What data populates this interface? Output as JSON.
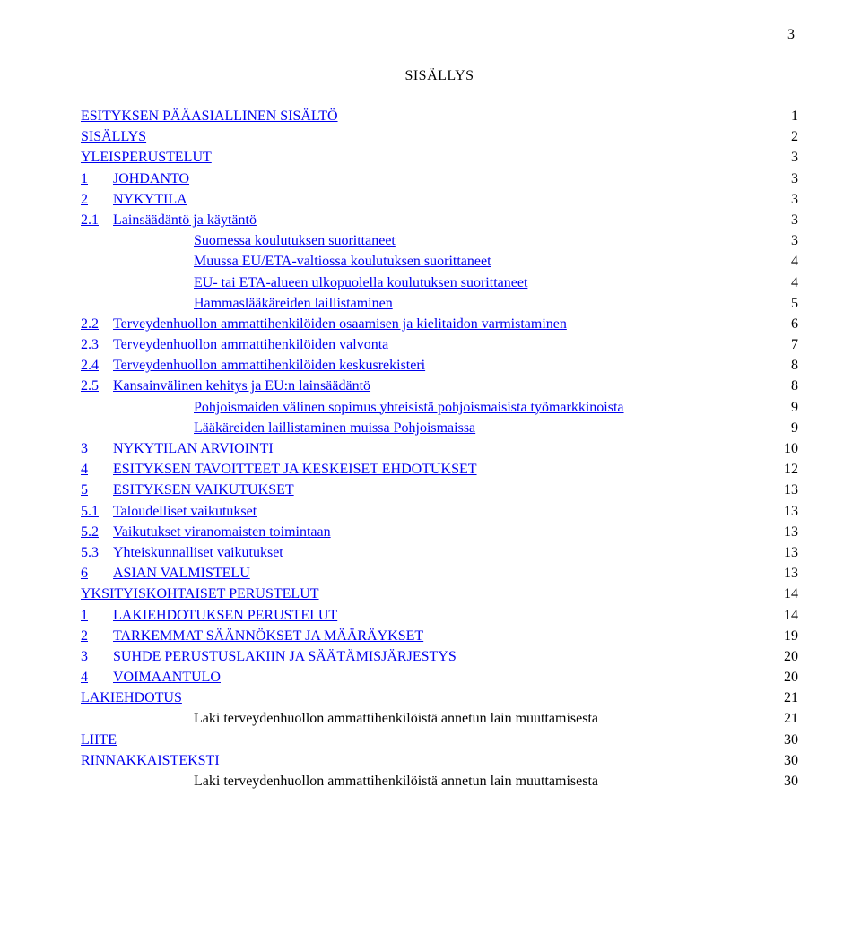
{
  "page_number_top": "3",
  "toc_title": "SISÄLLYS",
  "link_color": "#0000ee",
  "text_color": "#000000",
  "background_color": "#ffffff",
  "font_family": "Times New Roman",
  "base_font_size_pt": 12,
  "entries": [
    {
      "num": "",
      "label": "ESITYKSEN PÄÄASIALLINEN SISÄLTÖ",
      "page": "1",
      "indent": 0,
      "num_link": false,
      "label_link": true
    },
    {
      "num": "",
      "label": "SISÄLLYS",
      "page": "2",
      "indent": 0,
      "num_link": false,
      "label_link": true
    },
    {
      "num": "",
      "label": "YLEISPERUSTELUT",
      "page": "3",
      "indent": 0,
      "num_link": false,
      "label_link": true
    },
    {
      "num": "1",
      "label": "JOHDANTO",
      "page": "3",
      "indent": 1,
      "num_link": true,
      "label_link": true
    },
    {
      "num": "2",
      "label": "NYKYTILA",
      "page": "3",
      "indent": 1,
      "num_link": true,
      "label_link": true
    },
    {
      "num": "2.1",
      "label": "Lainsäädäntö ja käytäntö",
      "page": "3",
      "indent": 1,
      "num_link": true,
      "label_link": true
    },
    {
      "num": "",
      "label": "Suomessa koulutuksen suorittaneet",
      "page": "3",
      "indent": 2,
      "num_link": false,
      "label_link": true
    },
    {
      "num": "",
      "label": "Muussa EU/ETA-valtiossa koulutuksen suorittaneet",
      "page": "4",
      "indent": 2,
      "num_link": false,
      "label_link": true
    },
    {
      "num": "",
      "label": "EU- tai ETA-alueen ulkopuolella koulutuksen suorittaneet",
      "page": "4",
      "indent": 2,
      "num_link": false,
      "label_link": true
    },
    {
      "num": "",
      "label": "Hammaslääkäreiden laillistaminen",
      "page": "5",
      "indent": 2,
      "num_link": false,
      "label_link": true
    },
    {
      "num": "2.2",
      "label": "Terveydenhuollon ammattihenkilöiden osaamisen ja kielitaidon varmistaminen",
      "page": "6",
      "indent": 1,
      "num_link": true,
      "label_link": true
    },
    {
      "num": "2.3",
      "label": "Terveydenhuollon ammattihenkilöiden valvonta",
      "page": "7",
      "indent": 1,
      "num_link": true,
      "label_link": true
    },
    {
      "num": "2.4",
      "label": "Terveydenhuollon ammattihenkilöiden keskusrekisteri",
      "page": "8",
      "indent": 1,
      "num_link": true,
      "label_link": true
    },
    {
      "num": "2.5",
      "label": "Kansainvälinen kehitys ja EU:n lainsäädäntö",
      "page": "8",
      "indent": 1,
      "num_link": true,
      "label_link": true
    },
    {
      "num": "",
      "label": "Pohjoismaiden välinen sopimus yhteisistä pohjoismaisista työmarkkinoista",
      "page": "9",
      "indent": 2,
      "num_link": false,
      "label_link": true
    },
    {
      "num": "",
      "label": "Lääkäreiden laillistaminen muissa Pohjoismaissa",
      "page": "9",
      "indent": 2,
      "num_link": false,
      "label_link": true
    },
    {
      "num": "3",
      "label": "NYKYTILAN ARVIOINTI",
      "page": "10",
      "indent": 1,
      "num_link": true,
      "label_link": true
    },
    {
      "num": "4",
      "label": "ESITYKSEN TAVOITTEET JA KESKEISET EHDOTUKSET",
      "page": "12",
      "indent": 1,
      "num_link": true,
      "label_link": true
    },
    {
      "num": "5",
      "label": "ESITYKSEN VAIKUTUKSET",
      "page": "13",
      "indent": 1,
      "num_link": true,
      "label_link": true
    },
    {
      "num": "5.1",
      "label": "Taloudelliset vaikutukset",
      "page": "13",
      "indent": 1,
      "num_link": true,
      "label_link": true
    },
    {
      "num": "5.2",
      "label": "Vaikutukset viranomaisten toimintaan",
      "page": "13",
      "indent": 1,
      "num_link": true,
      "label_link": true
    },
    {
      "num": "5.3",
      "label": "Yhteiskunnalliset vaikutukset",
      "page": "13",
      "indent": 1,
      "num_link": true,
      "label_link": true
    },
    {
      "num": "6",
      "label": "ASIAN VALMISTELU",
      "page": "13",
      "indent": 1,
      "num_link": true,
      "label_link": true
    },
    {
      "num": "",
      "label": "YKSITYISKOHTAISET PERUSTELUT",
      "page": "14",
      "indent": 0,
      "num_link": false,
      "label_link": true
    },
    {
      "num": "1",
      "label": "LAKIEHDOTUKSEN PERUSTELUT",
      "page": "14",
      "indent": 1,
      "num_link": true,
      "label_link": true
    },
    {
      "num": "2",
      "label": "TARKEMMAT SÄÄNNÖKSET JA MÄÄRÄYKSET",
      "page": "19",
      "indent": 1,
      "num_link": true,
      "label_link": true
    },
    {
      "num": "3",
      "label": "SUHDE PERUSTUSLAKIIN JA SÄÄTÄMISJÄRJESTYS",
      "page": "20",
      "indent": 1,
      "num_link": true,
      "label_link": true
    },
    {
      "num": "4",
      "label": "VOIMAANTULO",
      "page": "20",
      "indent": 1,
      "num_link": true,
      "label_link": true
    },
    {
      "num": "",
      "label": "LAKIEHDOTUS",
      "page": "21",
      "indent": 0,
      "num_link": false,
      "label_link": true
    },
    {
      "num": "",
      "label": "Laki terveydenhuollon ammattihenkilöistä annetun lain muuttamisesta",
      "page": "21",
      "indent": 2,
      "num_link": false,
      "label_link": false
    },
    {
      "num": "",
      "label": "LIITE",
      "page": "30",
      "indent": 0,
      "num_link": false,
      "label_link": true
    },
    {
      "num": "",
      "label": "RINNAKKAISTEKSTI",
      "page": "30",
      "indent": 0,
      "num_link": false,
      "label_link": true
    },
    {
      "num": "",
      "label": "Laki terveydenhuollon ammattihenkilöistä annetun lain muuttamisesta",
      "page": "30",
      "indent": 2,
      "num_link": false,
      "label_link": false
    }
  ]
}
